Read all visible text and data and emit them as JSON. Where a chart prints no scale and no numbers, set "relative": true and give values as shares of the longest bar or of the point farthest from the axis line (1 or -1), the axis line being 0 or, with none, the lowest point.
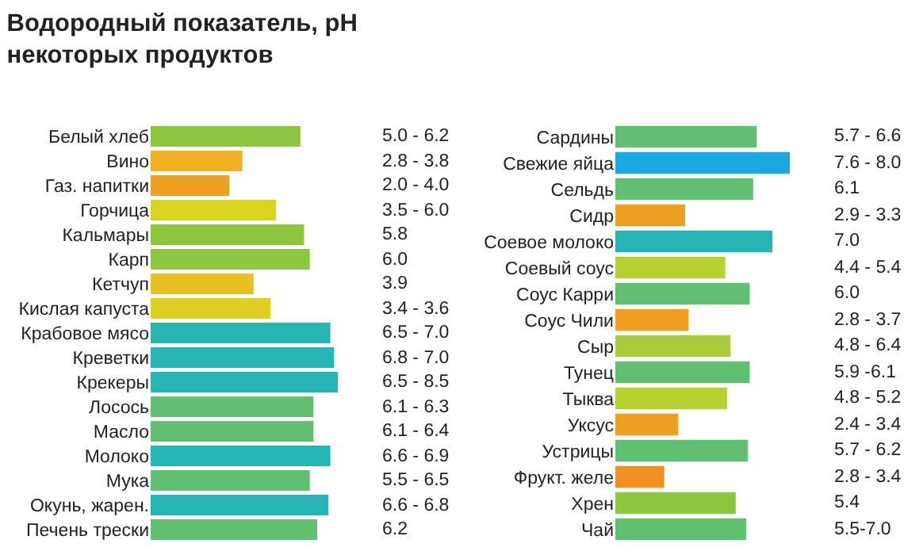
{
  "chart_data": [
    {
      "type": "bar",
      "orientation": "horizontal",
      "relative": true,
      "legend": false,
      "title": "Водородный показатель, pH\nнекоторых продуктов",
      "categories": [
        "Белый хлеб",
        "Вино",
        "Газ. напитки",
        "Горчица",
        "Кальмары",
        "Карп",
        "Кетчуп",
        "Кислая капуста",
        "Крабовое мясо",
        "Креветки",
        "Крекеры",
        "Лосось",
        "Масло",
        "Молоко",
        "Мука",
        "Окунь, жарен.",
        "Печень трески"
      ],
      "values": [
        0.8,
        0.49,
        0.42,
        0.67,
        0.82,
        0.85,
        0.55,
        0.64,
        0.96,
        0.98,
        1,
        0.87,
        0.87,
        0.96,
        0.85,
        0.95,
        0.89
      ],
      "colors": [
        "#8cc63f",
        "#f0b020",
        "#f0a020",
        "#d8d420",
        "#8cc63f",
        "#8cc63f",
        "#e8c020",
        "#dcd020",
        "#25b5b5",
        "#25b5b5",
        "#25b5b5",
        "#60bf70",
        "#60bf70",
        "#25b5b5",
        "#60bf70",
        "#25b5b5",
        "#60bf70"
      ],
      "annotations": [
        "5.0 - 6.2",
        "2.8 - 3.8",
        "2.0 - 4.0",
        "3.5 - 6.0",
        "5.8",
        "6.0",
        "3.9",
        "3.4 - 3.6",
        "6.5 - 7.0",
        "6.8 - 7.0",
        "6.5 - 8.5",
        "6.1 - 6.3",
        "6.1 - 6.4",
        "6.6 - 6.9",
        "5.5 - 6.5",
        "6.6 - 6.8",
        "6.2"
      ]
    },
    {
      "type": "bar",
      "orientation": "horizontal",
      "relative": true,
      "legend": false,
      "categories": [
        "Сардины",
        "Свежие яйца",
        "Сельдь",
        "Сидр",
        "Соевое молоко",
        "Соевый соус",
        "Соус Карри",
        "Соус Чили",
        "Сыр",
        "Тунец",
        "Тыква",
        "Уксус",
        "Устрицы",
        "Фрукт. желе",
        "Хрен",
        "Чай"
      ],
      "values": [
        0.81,
        1,
        0.79,
        0.4,
        0.9,
        0.63,
        0.77,
        0.42,
        0.66,
        0.77,
        0.64,
        0.36,
        0.76,
        0.28,
        0.69,
        0.75
      ],
      "colors": [
        "#60bf70",
        "#1aa8e0",
        "#60bf70",
        "#f0a020",
        "#25b5b5",
        "#b8d030",
        "#60bf70",
        "#f0a020",
        "#a8cc38",
        "#60bf70",
        "#b8d030",
        "#f0a020",
        "#60bf70",
        "#f09020",
        "#8cc63f",
        "#60bf70"
      ],
      "annotations": [
        "5.7 - 6.6",
        "7.6 - 8.0",
        "6.1",
        "2.9 - 3.3",
        "7.0",
        "4.4 - 5.4",
        "6.0",
        "2.8 - 3.7",
        "4.8 - 6.4",
        "5.9 -6.1",
        "4.8 - 5.2",
        "2.4 - 3.4",
        "5.7 - 6.2",
        "2.8 - 3.4",
        "5.4",
        "5.5-7.0"
      ]
    }
  ]
}
